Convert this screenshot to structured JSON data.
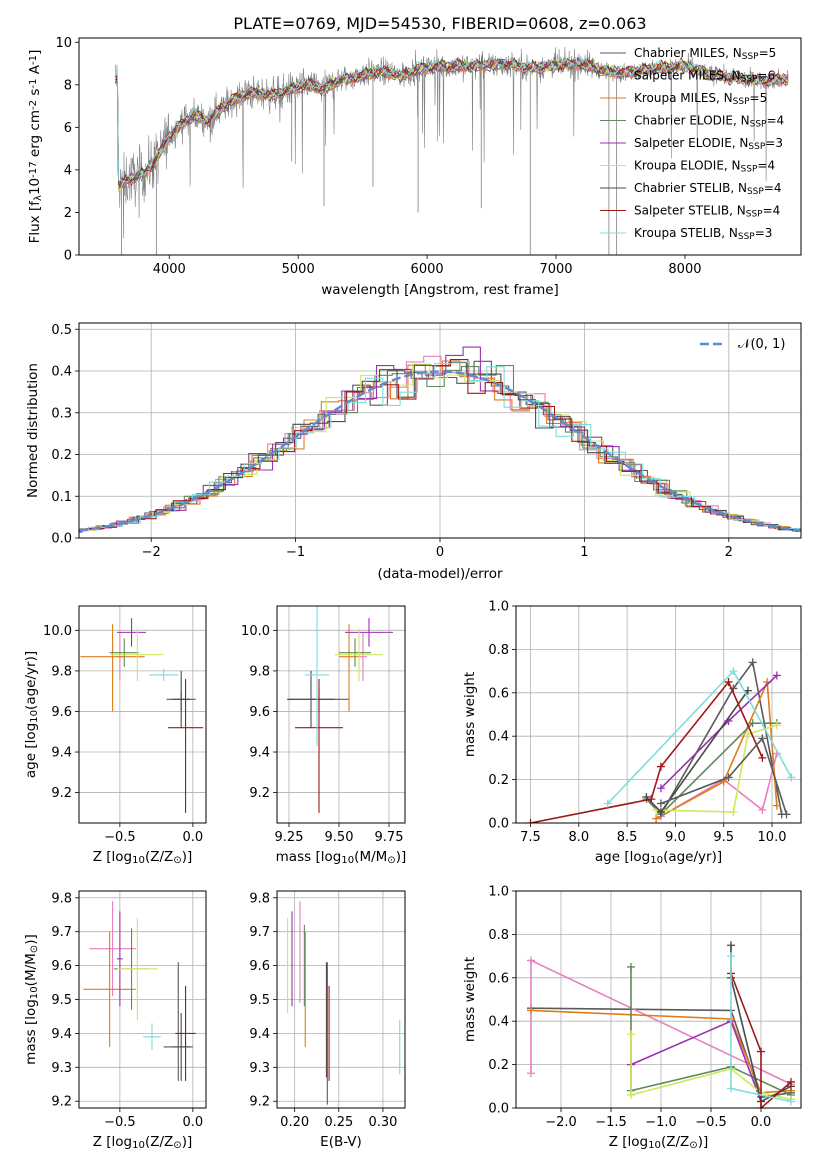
{
  "figure": {
    "title": "PLATE=0769, MJD=54530, FIBERID=0608, z=0.063"
  },
  "colors": {
    "observed": "#808080",
    "model_colors": [
      "#5a5a5a",
      "#e87fc0",
      "#e07b1a",
      "#5e8a5e",
      "#9b30b0",
      "#cfe85a",
      "#4a4a4a",
      "#a01818",
      "#7fdcdc"
    ],
    "normal_curve": "#5a8ad8"
  },
  "chart_data": [
    {
      "id": "spectrum",
      "type": "line",
      "xlabel": "wavelength [Angstrom, rest frame]",
      "ylabel": "Flux [f$_\\lambda$10$^{-17}$ erg cm$^{-2}$ s$^{-1}$ A$^{-1}$]",
      "xlim": [
        3300,
        8900
      ],
      "ylim": [
        0,
        10.2
      ],
      "xticks": [
        4000,
        5000,
        6000,
        7000,
        8000
      ],
      "yticks": [
        0,
        2,
        4,
        6,
        8,
        10
      ],
      "grid": false,
      "legend_position": "upper right",
      "series": [
        {
          "name": "Chabrier MILES, N$_{SSP}$=5"
        },
        {
          "name": "Salpeter MILES, N$_{SSP}$=6"
        },
        {
          "name": "Kroupa MILES, N$_{SSP}$=5"
        },
        {
          "name": "Chabrier ELODIE, N$_{SSP}$=4"
        },
        {
          "name": "Salpeter ELODIE, N$_{SSP}$=3"
        },
        {
          "name": "Kroupa ELODIE, N$_{SSP}$=4"
        },
        {
          "name": "Chabrier STELIB, N$_{SSP}$=4"
        },
        {
          "name": "Salpeter STELIB, N$_{SSP}$=4"
        },
        {
          "name": "Kroupa STELIB, N$_{SSP}$=3"
        }
      ],
      "continuum": {
        "x": [
          3600,
          3700,
          3800,
          3900,
          4000,
          4100,
          4200,
          4300,
          4400,
          4500,
          4600,
          4700,
          4800,
          4900,
          5000,
          5100,
          5200,
          5300,
          5400,
          5500,
          5600,
          5700,
          5800,
          5900,
          6000,
          6200,
          6400,
          6600,
          6800,
          7000,
          7200,
          7400,
          7600,
          7800,
          8000,
          8200,
          8400,
          8600,
          8800
        ],
        "y": [
          3.2,
          3.6,
          3.8,
          4.5,
          5.6,
          6.2,
          6.6,
          6.3,
          6.9,
          7.3,
          7.6,
          7.6,
          7.5,
          7.7,
          7.9,
          8.0,
          7.8,
          8.2,
          8.3,
          8.5,
          8.6,
          8.6,
          8.4,
          8.7,
          8.8,
          8.9,
          8.9,
          9.0,
          8.8,
          8.9,
          9.0,
          8.6,
          8.6,
          8.8,
          8.9,
          8.5,
          8.3,
          8.2,
          8.3
        ]
      }
    },
    {
      "id": "residuals",
      "type": "histogram",
      "xlabel": "(data-model)/error",
      "ylabel": "Normed distribution",
      "xlim": [
        -2.5,
        2.5
      ],
      "ylim": [
        0,
        0.515
      ],
      "xticks": [
        -2,
        -1,
        0,
        1,
        2
      ],
      "yticks": [
        0.0,
        0.1,
        0.2,
        0.3,
        0.4,
        0.5
      ],
      "grid": true,
      "legend_position": "upper right",
      "reference_curve": {
        "name": "$\\mathcal{N}(0, 1)$",
        "mean": 0,
        "sigma": 1
      }
    },
    {
      "id": "age_vs_z",
      "type": "errorbar",
      "xlabel": "Z [log$_{10}$(Z/Z$_\\odot$)]",
      "ylabel": "age  [log$_{10}$(age/yr)]",
      "xlim": [
        -0.78,
        0.09
      ],
      "ylim": [
        9.05,
        10.12
      ],
      "xticks": [
        -0.5,
        0.0
      ],
      "yticks": [
        9.2,
        9.4,
        9.6,
        9.8,
        10.0
      ],
      "grid": true,
      "points": [
        {
          "x": -0.08,
          "y": 9.66,
          "xerr": 0.1,
          "yerr": [
            0.06,
            0.04
          ]
        },
        {
          "x": -0.5,
          "y": 9.87,
          "xerr": 0.02,
          "yerr": 0.12
        },
        {
          "x": -0.55,
          "y": 9.87,
          "xerr": 0.22,
          "yerr": [
            0.27,
            0.16
          ]
        },
        {
          "x": -0.47,
          "y": 9.89,
          "xerr": 0.1,
          "yerr": 0.07
        },
        {
          "x": -0.42,
          "y": 9.99,
          "xerr": 0.1,
          "yerr": 0.07
        },
        {
          "x": -0.38,
          "y": 9.88,
          "xerr": 0.18,
          "yerr": 0.13
        },
        {
          "x": -0.08,
          "y": 9.66,
          "xerr": 0.06,
          "yerr": 0.14
        },
        {
          "x": -0.05,
          "y": 9.52,
          "xerr": 0.12,
          "yerr": [
            0.42,
            0.24
          ]
        },
        {
          "x": -0.2,
          "y": 9.78,
          "xerr": 0.1,
          "yerr": 0.03
        }
      ]
    },
    {
      "id": "age_vs_mass",
      "type": "errorbar",
      "xlabel": "mass [log$_{10}$(M/M$_\\odot$)]",
      "ylabel": "",
      "xlim": [
        9.19,
        9.83
      ],
      "ylim": [
        9.05,
        10.12
      ],
      "xticks": [
        9.25,
        9.5,
        9.75
      ],
      "yticks": [
        9.2,
        9.4,
        9.6,
        9.8,
        10.0
      ],
      "grid": true,
      "points": [
        {
          "x": 9.4,
          "y": 9.66,
          "xerr": 0.15,
          "yerr": 0.06
        },
        {
          "x": 9.62,
          "y": 9.87,
          "xerr": 0.02,
          "yerr": 0.12
        },
        {
          "x": 9.55,
          "y": 9.87,
          "xerr": 0.05,
          "yerr": [
            0.27,
            0.16
          ]
        },
        {
          "x": 9.58,
          "y": 9.89,
          "xerr": 0.08,
          "yerr": 0.07
        },
        {
          "x": 9.65,
          "y": 9.99,
          "xerr": 0.12,
          "yerr": 0.07
        },
        {
          "x": 9.6,
          "y": 9.88,
          "xerr": 0.12,
          "yerr": 0.13
        },
        {
          "x": 9.36,
          "y": 9.66,
          "xerr": 0.12,
          "yerr": 0.14
        },
        {
          "x": 9.4,
          "y": 9.52,
          "xerr": 0.12,
          "yerr": [
            0.42,
            0.24
          ]
        },
        {
          "x": 9.39,
          "y": 9.78,
          "xerr": 0.06,
          "yerr": 0.35
        }
      ]
    },
    {
      "id": "weight_vs_age",
      "type": "line",
      "xlabel": "age  [log$_{10}$(age/yr)]",
      "ylabel": "mass weight",
      "xlim": [
        7.35,
        10.3
      ],
      "ylim": [
        0,
        1.0
      ],
      "xticks": [
        7.5,
        8.0,
        8.5,
        9.0,
        9.5,
        10.0
      ],
      "yticks": [
        0.0,
        0.2,
        0.4,
        0.6,
        0.8,
        1.0
      ],
      "grid": true,
      "series": [
        {
          "x": [
            8.85,
            9.6,
            9.8,
            10.1
          ],
          "y": [
            0.04,
            0.62,
            0.74,
            0.04
          ]
        },
        {
          "x": [
            8.85,
            9.5,
            9.9,
            10.05
          ],
          "y": [
            0.03,
            0.2,
            0.06,
            0.32
          ]
        },
        {
          "x": [
            8.8,
            9.5,
            9.95,
            10.05
          ],
          "y": [
            0.02,
            0.19,
            0.65,
            0.08
          ]
        },
        {
          "x": [
            8.7,
            8.85,
            9.8,
            10.05
          ],
          "y": [
            0.11,
            0.04,
            0.46,
            0.46
          ]
        },
        {
          "x": [
            8.85,
            9.55,
            10.05
          ],
          "y": [
            0.16,
            0.47,
            0.68
          ]
        },
        {
          "x": [
            8.8,
            9.6,
            9.75,
            10.05
          ],
          "y": [
            0.06,
            0.05,
            0.41,
            0.45
          ]
        },
        {
          "x": [
            8.7,
            8.85,
            9.75
          ],
          "y": [
            0.12,
            0.05,
            0.61
          ]
        },
        {
          "x": [
            7.5,
            8.75,
            8.85,
            9.55,
            9.9
          ],
          "y": [
            0.0,
            0.11,
            0.26,
            0.65,
            0.3
          ]
        },
        {
          "x": [
            8.3,
            9.6,
            10.2
          ],
          "y": [
            0.09,
            0.7,
            0.21
          ]
        },
        {
          "x": [
            8.85,
            9.55,
            9.9,
            10.15
          ],
          "y": [
            0.09,
            0.21,
            0.39,
            0.04
          ]
        }
      ]
    },
    {
      "id": "mass_vs_z",
      "type": "errorbar",
      "xlabel": "Z [log$_{10}$(Z/Z$_\\odot$)]",
      "ylabel": "mass [log$_{10}$(M/M$_\\odot$)]",
      "xlim": [
        -0.78,
        0.09
      ],
      "ylim": [
        9.18,
        9.82
      ],
      "xticks": [
        -0.5,
        0.0
      ],
      "yticks": [
        9.2,
        9.3,
        9.4,
        9.5,
        9.6,
        9.7,
        9.8
      ],
      "grid": true,
      "points": [
        {
          "x": -0.1,
          "y": 9.36,
          "xerr": 0.1,
          "yerr": [
            0.1,
            0.25
          ]
        },
        {
          "x": -0.55,
          "y": 9.65,
          "xerr": 0.16,
          "yerr": 0.14
        },
        {
          "x": -0.57,
          "y": 9.53,
          "xerr": 0.18,
          "yerr": 0.17
        },
        {
          "x": -0.42,
          "y": 9.59,
          "xerr": 0.12,
          "yerr": 0.12
        },
        {
          "x": -0.5,
          "y": 9.62,
          "xerr": 0.02,
          "yerr": 0.14
        },
        {
          "x": -0.38,
          "y": 9.59,
          "xerr": 0.14,
          "yerr": 0.15
        },
        {
          "x": -0.08,
          "y": 9.36,
          "xerr": 0.06,
          "yerr": 0.1
        },
        {
          "x": -0.05,
          "y": 9.4,
          "xerr": 0.07,
          "yerr": 0.14
        },
        {
          "x": -0.28,
          "y": 9.39,
          "xerr": 0.06,
          "yerr": 0.04
        }
      ]
    },
    {
      "id": "mass_vs_ebv",
      "type": "errorbar",
      "xlabel": "E(B-V)",
      "ylabel": "",
      "xlim": [
        0.18,
        0.325
      ],
      "ylim": [
        9.18,
        9.82
      ],
      "xticks": [
        0.2,
        0.25,
        0.3
      ],
      "yticks": [
        9.2,
        9.3,
        9.4,
        9.5,
        9.6,
        9.7,
        9.8
      ],
      "grid": true,
      "points": [
        {
          "x": 0.237,
          "y": 9.4,
          "xerr": 0,
          "yerr": 0.21
        },
        {
          "x": 0.206,
          "y": 9.64,
          "xerr": 0,
          "yerr": 0.15
        },
        {
          "x": 0.212,
          "y": 9.53,
          "xerr": 0,
          "yerr": 0.17
        },
        {
          "x": 0.211,
          "y": 9.6,
          "xerr": 0,
          "yerr": 0.12
        },
        {
          "x": 0.197,
          "y": 9.62,
          "xerr": 0,
          "yerr": 0.14
        },
        {
          "x": 0.192,
          "y": 9.6,
          "xerr": 0,
          "yerr": 0.14
        },
        {
          "x": 0.236,
          "y": 9.44,
          "xerr": 0,
          "yerr": 0.17
        },
        {
          "x": 0.239,
          "y": 9.4,
          "xerr": 0,
          "yerr": 0.14
        },
        {
          "x": 0.319,
          "y": 9.36,
          "xerr": 0,
          "yerr": 0.08
        }
      ]
    },
    {
      "id": "weight_vs_z",
      "type": "line",
      "xlabel": "Z [log$_{10}$(Z/Z$_\\odot$)]",
      "ylabel": "mass weight",
      "xlim": [
        -2.45,
        0.4
      ],
      "ylim": [
        0,
        1.0
      ],
      "xticks": [
        -2.0,
        -1.5,
        -1.0,
        -0.5,
        0.0
      ],
      "yticks": [
        0.0,
        0.2,
        0.4,
        0.6,
        0.8,
        1.0
      ],
      "grid": true,
      "series": [
        {
          "x": [
            -2.3,
            -0.3,
            0.0,
            0.3
          ],
          "y": [
            0.46,
            0.45,
            0.05,
            0.07
          ]
        },
        {
          "x": [
            -2.3,
            -2.3,
            0.3
          ],
          "y": [
            0.16,
            0.68,
            0.11
          ]
        },
        {
          "x": [
            -2.3,
            -0.3,
            0.0,
            0.3
          ],
          "y": [
            0.45,
            0.41,
            0.07,
            0.08
          ]
        },
        {
          "x": [
            -1.3,
            -1.3,
            -0.3,
            0.3
          ],
          "y": [
            0.65,
            0.08,
            0.19,
            0.06
          ]
        },
        {
          "x": [
            -1.3,
            -0.3,
            0.0
          ],
          "y": [
            0.2,
            0.4,
            0.03
          ]
        },
        {
          "x": [
            -1.3,
            -1.3,
            -0.3,
            0.0,
            0.3
          ],
          "y": [
            0.34,
            0.06,
            0.18,
            0.07,
            0.04
          ]
        },
        {
          "x": [
            -0.3,
            -0.3,
            0.0,
            0.3
          ],
          "y": [
            0.75,
            0.6,
            0.03,
            0.1
          ]
        },
        {
          "x": [
            -0.3,
            0.0,
            0.0,
            0.3
          ],
          "y": [
            0.62,
            0.26,
            0.0,
            0.12
          ]
        },
        {
          "x": [
            -0.3,
            -0.3,
            0.3
          ],
          "y": [
            0.7,
            0.09,
            0.03
          ]
        }
      ]
    }
  ]
}
